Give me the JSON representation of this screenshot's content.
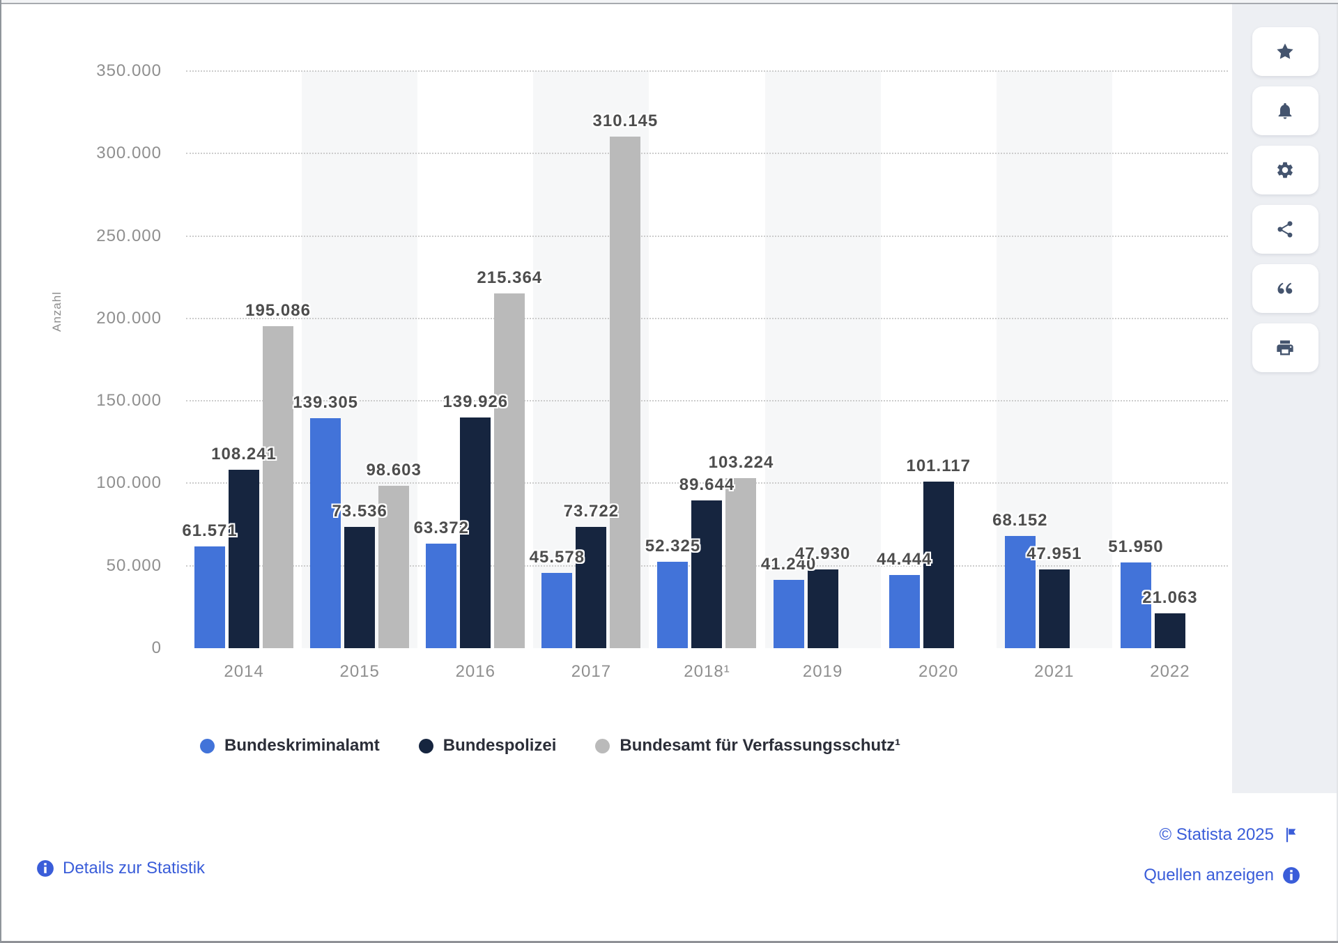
{
  "chart_data": {
    "type": "bar",
    "title": "",
    "ylabel": "Anzahl",
    "ylim": [
      0,
      350000
    ],
    "ytick_step": 50000,
    "ytick_labels": [
      "0",
      "50.000",
      "100.000",
      "150.000",
      "200.000",
      "250.000",
      "300.000",
      "350.000"
    ],
    "categories": [
      "2014",
      "2015",
      "2016",
      "2017",
      "2018¹",
      "2019",
      "2020",
      "2021",
      "2022"
    ],
    "series": [
      {
        "id": "bundeskriminalamt",
        "name": "Bundeskriminalamt",
        "color": "#4273d9",
        "values": [
          61571,
          139305,
          63372,
          45578,
          52325,
          41240,
          44444,
          68152,
          51950
        ],
        "labels": [
          "61.571",
          "139.305",
          "63.372",
          "45.578",
          "52.325",
          "41.240",
          "44.444",
          "68.152",
          "51.950"
        ]
      },
      {
        "id": "bundespolizei",
        "name": "Bundespolizei",
        "color": "#16253f",
        "values": [
          108241,
          73536,
          139926,
          73722,
          89644,
          47930,
          101117,
          47951,
          21063
        ],
        "labels": [
          "108.241",
          "73.536",
          "139.926",
          "73.722",
          "89.644",
          "47.930",
          "101.117",
          "47.951",
          "21.063"
        ]
      },
      {
        "id": "verfassungsschutz",
        "name": "Bundesamt für Verfassungsschutz¹",
        "color": "#bababa",
        "values": [
          195086,
          98603,
          215364,
          310145,
          103224,
          null,
          null,
          null,
          null
        ],
        "labels": [
          "195.086",
          "98.603",
          "215.364",
          "310.145",
          "103.224",
          null,
          null,
          null,
          null
        ]
      }
    ],
    "grid": "horizontal-dotted",
    "legend_position": "bottom",
    "band_color": "#f6f7f8",
    "banded_categories": [
      "2015",
      "2017",
      "2019",
      "2021"
    ]
  },
  "sidebar": {
    "buttons": [
      {
        "icon": "star-icon",
        "name": "favorite-button"
      },
      {
        "icon": "bell-icon",
        "name": "notifications-button"
      },
      {
        "icon": "gear-icon",
        "name": "settings-button"
      },
      {
        "icon": "share-icon",
        "name": "share-button"
      },
      {
        "icon": "quote-icon",
        "name": "cite-button"
      },
      {
        "icon": "printer-icon",
        "name": "print-button"
      }
    ]
  },
  "footer": {
    "details_label": "Details zur Statistik",
    "copyright": "© Statista 2025",
    "sources_label": "Quellen anzeigen"
  },
  "colors": {
    "bar_blue": "#4273d9",
    "bar_navy": "#16253f",
    "bar_gray": "#bababa",
    "link_blue": "#3a5dd9",
    "icon_slate": "#44546e",
    "band_gray": "#f6f7f8",
    "rail_gray": "#edeff3"
  }
}
